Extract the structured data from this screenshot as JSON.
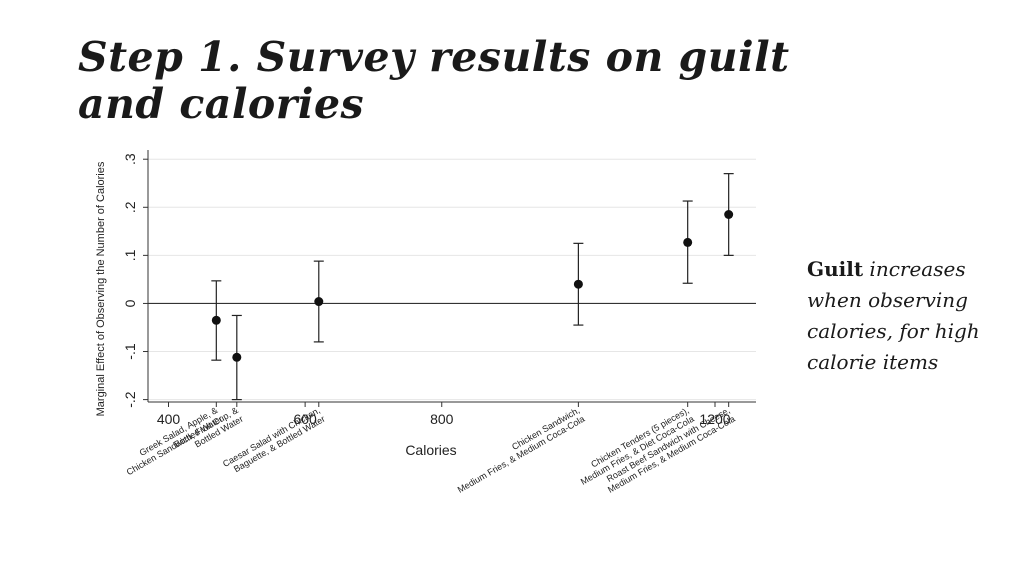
{
  "slide": {
    "title": "Step 1. Survey results on guilt and calories",
    "note_bold": "Guilt",
    "note_rest": " increases when observing calories, for high calorie items"
  },
  "chart_data": {
    "type": "scatter",
    "title": "",
    "xlabel": "Calories",
    "ylabel": "Marginal Effect of Observing the Number of Calories",
    "xlim": [
      370,
      1260
    ],
    "ylim": [
      -0.205,
      0.315
    ],
    "x_ticks": [
      400,
      600,
      800,
      1200
    ],
    "y_ticks": [
      0.3,
      0.2,
      0.1,
      0,
      -0.1,
      -0.2
    ],
    "y_tick_labels": [
      ".3",
      ".2",
      ".1",
      "0",
      "-.1",
      "-.2"
    ],
    "grid": true,
    "points": [
      {
        "x": 470,
        "y": -0.035,
        "ci_low": -0.118,
        "ci_high": 0.047,
        "label_lines": [
          "Greek Salad, Apple, &",
          "Bottled Water"
        ]
      },
      {
        "x": 500,
        "y": -0.112,
        "ci_low": -0.2,
        "ci_high": -0.025,
        "label_lines": [
          "Chicken Sandwich, Fruit Cup, &",
          "Bottled Water"
        ]
      },
      {
        "x": 620,
        "y": 0.004,
        "ci_low": -0.08,
        "ci_high": 0.088,
        "label_lines": [
          "Caesar Salad with Chicken,",
          "Baguette, & Bottled Water"
        ]
      },
      {
        "x": 1000,
        "y": 0.04,
        "ci_low": -0.045,
        "ci_high": 0.125,
        "label_lines": [
          "Chicken Sandwich,",
          "Medium Fries, & Medium Coca-Cola"
        ]
      },
      {
        "x": 1160,
        "y": 0.127,
        "ci_low": 0.042,
        "ci_high": 0.213,
        "label_lines": [
          "Chicken Tenders (5 pieces),",
          "Medium Fries, & Diet Coca-Cola"
        ]
      },
      {
        "x": 1220,
        "y": 0.185,
        "ci_low": 0.1,
        "ci_high": 0.27,
        "label_lines": [
          "Roast Beef Sandwich with Cheese,",
          "Medium Fries, & Medium Coca-Cola"
        ]
      }
    ]
  }
}
